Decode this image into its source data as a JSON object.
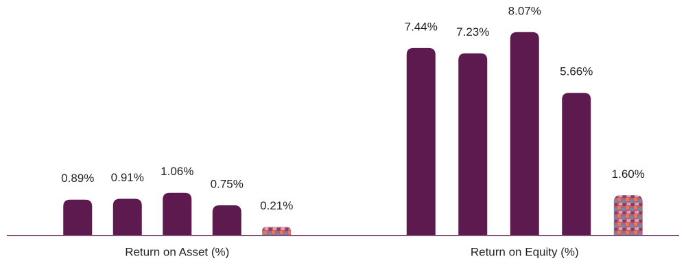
{
  "chart_data": [
    {
      "type": "bar",
      "xlabel": "Return on Asset (%)",
      "values": [
        0.89,
        0.91,
        1.06,
        0.75,
        0.21
      ],
      "value_labels": [
        "0.89%",
        "0.91%",
        "1.06%",
        "0.75%",
        "0.21%"
      ],
      "colors": [
        "#5c1a4f",
        "#5c1a4f",
        "#5c1a4f",
        "#5c1a4f",
        "#c0607a"
      ],
      "ylim": [
        0,
        5.5
      ]
    },
    {
      "type": "bar",
      "xlabel": "Return on Equity (%)",
      "values": [
        7.44,
        7.23,
        8.07,
        5.66,
        1.6
      ],
      "value_labels": [
        "7.44%",
        "7.23%",
        "8.07%",
        "5.66%",
        "1.60%"
      ],
      "colors": [
        "#5c1a4f",
        "#5c1a4f",
        "#5c1a4f",
        "#5c1a4f",
        "#c0607a"
      ],
      "ylim": [
        0,
        8.8
      ]
    }
  ]
}
